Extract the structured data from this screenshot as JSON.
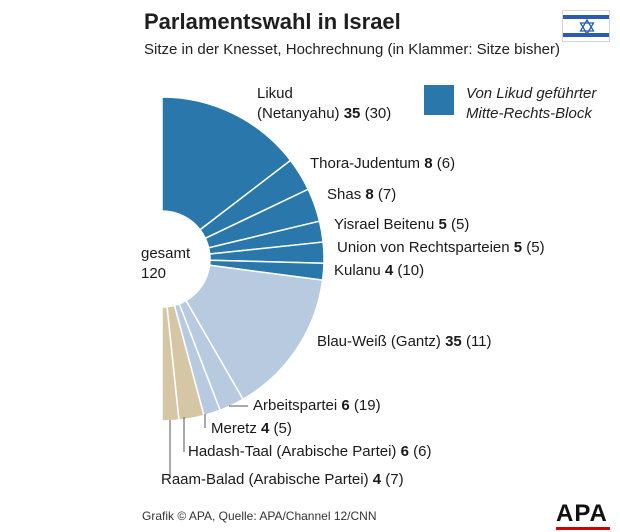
{
  "header": {
    "title": "Parlamentswahl in Israel",
    "subtitle": "Sitze in der Knesset, Hochrechnung (in Klammer: Sitze bisher)"
  },
  "legend": {
    "line1": "Von Likud geführter",
    "line2": "Mitte-Rechts-Block",
    "color": "#2a77ac"
  },
  "total": {
    "line1": "gesamt",
    "line2": "120"
  },
  "footer": {
    "source": "Grafik © APA, Quelle: APA/Channel 12/CNN",
    "logo": "APA"
  },
  "chart_data": {
    "type": "pie",
    "total_seats": 120,
    "series": [
      {
        "name": "Likud (Netanyahu)",
        "seats": 35,
        "previous": 30,
        "block": "right",
        "color": "#2a77ac"
      },
      {
        "name": "Thora-Judentum",
        "seats": 8,
        "previous": 6,
        "block": "right",
        "color": "#2a77ac"
      },
      {
        "name": "Shas",
        "seats": 8,
        "previous": 7,
        "block": "right",
        "color": "#2a77ac"
      },
      {
        "name": "Yisrael Beitenu",
        "seats": 5,
        "previous": 5,
        "block": "right",
        "color": "#2a77ac"
      },
      {
        "name": "Union von Rechtsparteien",
        "seats": 5,
        "previous": 5,
        "block": "right",
        "color": "#2a77ac"
      },
      {
        "name": "Kulanu",
        "seats": 4,
        "previous": 10,
        "block": "right",
        "color": "#2a77ac"
      },
      {
        "name": "Blau-Weiß (Gantz)",
        "seats": 35,
        "previous": 11,
        "block": "other",
        "color": "#b8cadf"
      },
      {
        "name": "Arbeitspartei",
        "seats": 6,
        "previous": 19,
        "block": "other",
        "color": "#b8cadf"
      },
      {
        "name": "Meretz",
        "seats": 4,
        "previous": 5,
        "block": "other",
        "color": "#b8cadf"
      },
      {
        "name": "Hadash-Taal (Arabische Partei)",
        "seats": 6,
        "previous": 6,
        "block": "arab",
        "color": "#d5c7a5"
      },
      {
        "name": "Raam-Balad (Arabische Partei)",
        "seats": 4,
        "previous": 7,
        "block": "arab",
        "color": "#d5c7a5"
      }
    ]
  }
}
